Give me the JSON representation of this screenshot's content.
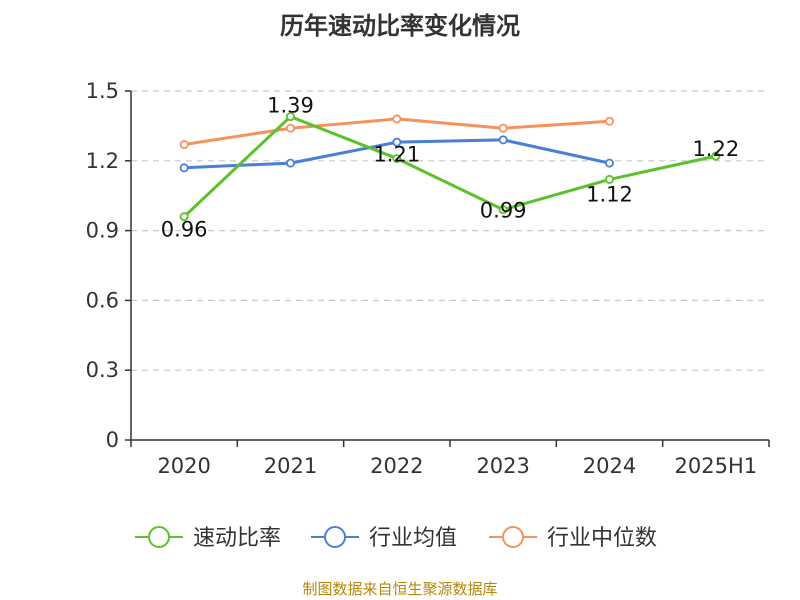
{
  "chart_data": {
    "type": "line",
    "title": "历年速动比率变化情况",
    "categories": [
      "2020",
      "2021",
      "2022",
      "2023",
      "2024",
      "2025H1"
    ],
    "ylim": [
      0,
      1.5
    ],
    "yticks": [
      "0",
      "0.3",
      "0.6",
      "0.9",
      "1.2",
      "1.5"
    ],
    "grid": true,
    "legend_position": "bottom",
    "series": [
      {
        "name": "速动比率",
        "color": "#5cc12a",
        "values": [
          0.96,
          1.39,
          1.21,
          0.99,
          1.12,
          1.22
        ],
        "labels": [
          "0.96",
          "1.39",
          "1.21",
          "0.99",
          "1.12",
          "1.22"
        ]
      },
      {
        "name": "行业均值",
        "color": "#4a7fd6",
        "values": [
          1.17,
          1.19,
          1.28,
          1.29,
          1.19,
          null
        ]
      },
      {
        "name": "行业中位数",
        "color": "#f5925e",
        "values": [
          1.27,
          1.34,
          1.38,
          1.34,
          1.37,
          null
        ]
      }
    ],
    "source": "制图数据来自恒生聚源数据库"
  }
}
